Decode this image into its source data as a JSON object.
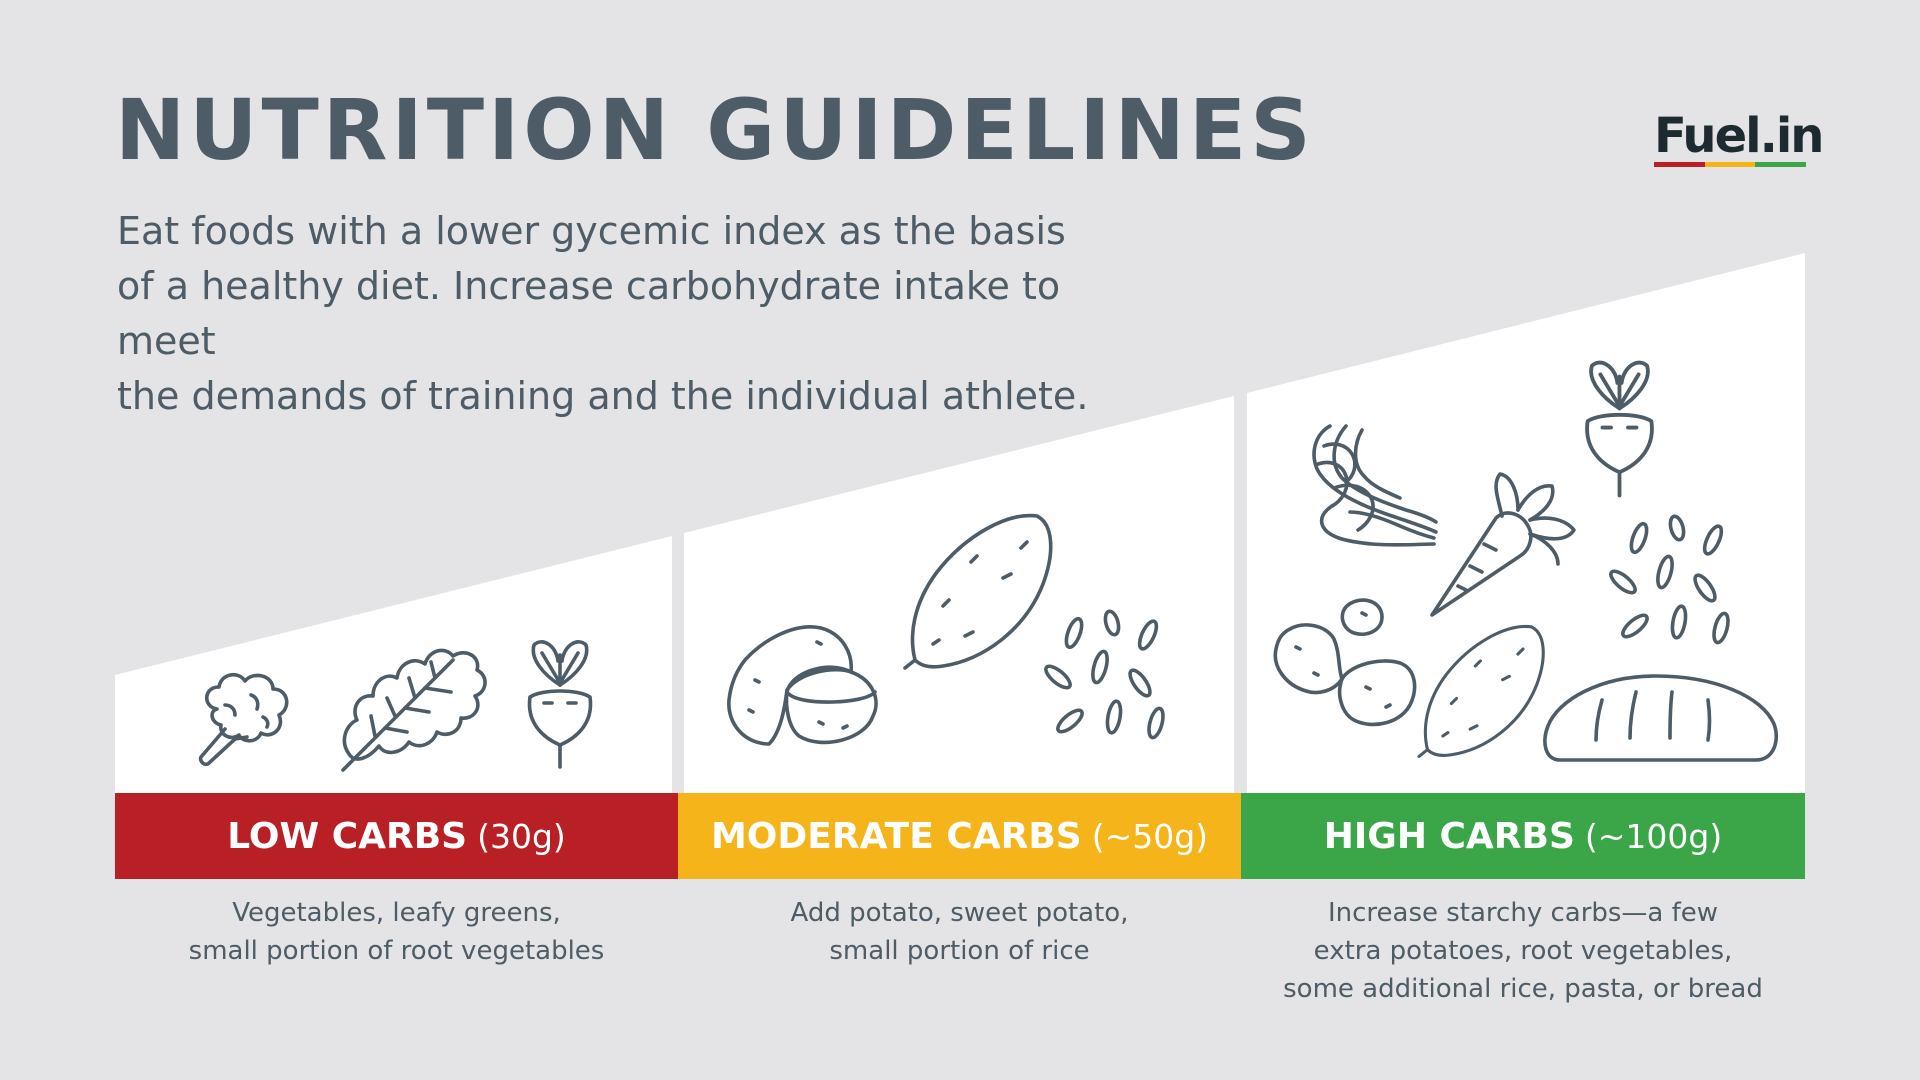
{
  "header": {
    "title": "NUTRITION GUIDELINES",
    "intro_lines": [
      "Eat foods with a lower gycemic index as the basis",
      "of a healthy diet. Increase carbohydrate intake to meet",
      "the demands of training and the individual athlete."
    ]
  },
  "logo": {
    "text": "Fuel.in",
    "stripe_colors": [
      "#b82025",
      "#f5b51a",
      "#3aa648"
    ]
  },
  "tiers": [
    {
      "title": "LOW CARBS",
      "amount": "(30g)",
      "color": "#b82025",
      "description": [
        "Vegetables, leafy greens,",
        "small portion of root vegetables"
      ],
      "icons": [
        "broccoli-icon",
        "kale-icon",
        "beet-icon"
      ]
    },
    {
      "title": "MODERATE CARBS",
      "amount": "(~50g)",
      "color": "#f5b51a",
      "description": [
        "Add potato, sweet potato,",
        "small portion of rice"
      ],
      "icons": [
        "potato-icon",
        "sweet-potato-icon",
        "rice-icon"
      ]
    },
    {
      "title": "HIGH CARBS",
      "amount": "(~100g)",
      "color": "#3aa648",
      "description": [
        "Increase starchy carbs—a few",
        "extra potatoes, root vegetables,",
        "some additional rice, pasta, or bread"
      ],
      "icons": [
        "pasta-icon",
        "carrot-icon",
        "beet-icon",
        "rice-icon",
        "potato-icon",
        "sweet-potato-icon",
        "bread-icon"
      ]
    }
  ],
  "colors": {
    "text": "#4d5c66",
    "background": "#e4e4e6",
    "panel": "#ffffff",
    "icon_stroke": "#4d5c66"
  }
}
